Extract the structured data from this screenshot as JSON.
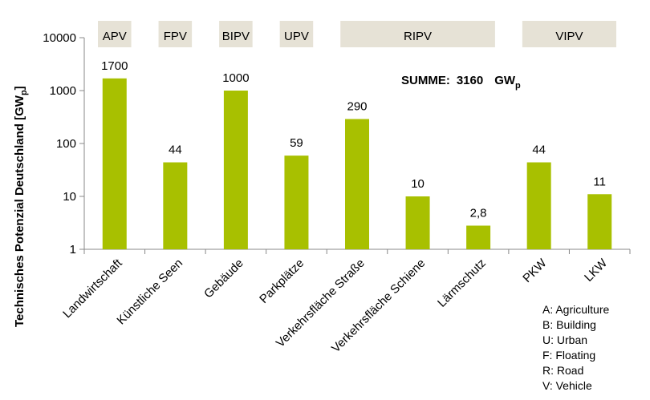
{
  "chart_data": {
    "type": "bar",
    "yscale": "log",
    "ylim": [
      1,
      10000
    ],
    "yticks": [
      "1",
      "10",
      "100",
      "1000",
      "10000"
    ],
    "ylabel": "Technisches Potenzial Deutschland [GW",
    "ylabel_sub": "p",
    "ylabel_end": "]",
    "categories": [
      "Landwirtschaft",
      "Künstliche Seen",
      "Gebäude",
      "Parkplätze",
      "Verkehrsfläche Straße",
      "Verkehrsfläche Schiene",
      "Lärmschutz",
      "PKW",
      "LKW"
    ],
    "values": [
      1700,
      44,
      1000,
      59,
      290,
      10,
      2.8,
      44,
      11
    ],
    "value_labels": [
      "1700",
      "44",
      "1000",
      "59",
      "290",
      "10",
      "2,8",
      "44",
      "11"
    ],
    "bar_color": "#a8c000",
    "groups": [
      {
        "label": "APV",
        "from": 0,
        "to": 0
      },
      {
        "label": "FPV",
        "from": 1,
        "to": 1
      },
      {
        "label": "BIPV",
        "from": 2,
        "to": 2
      },
      {
        "label": "UPV",
        "from": 3,
        "to": 3
      },
      {
        "label": "RIPV",
        "from": 4,
        "to": 6
      },
      {
        "label": "VIPV",
        "from": 7,
        "to": 8
      }
    ],
    "group_color": "#e6e2d6",
    "summary": {
      "prefix": "SUMME:",
      "value": "3160",
      "unit": "GW",
      "unit_sub": "p"
    },
    "legend": [
      "A: Agriculture",
      "B: Building",
      "U: Urban",
      "F: Floating",
      "R: Road",
      "V: Vehicle"
    ],
    "grid": false
  }
}
